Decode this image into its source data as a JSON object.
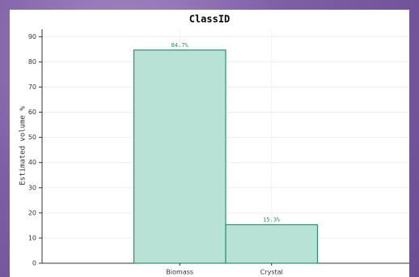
{
  "chart_data": {
    "type": "bar",
    "title": "ClassID",
    "y_label": "Estimated volume %",
    "categories": [
      "Biomass",
      "Crystal"
    ],
    "values": [
      84.7,
      15.3
    ],
    "value_labels": [
      "84.7%",
      "15.3%"
    ],
    "color": "#b9e2d6",
    "edge_color": "#2b8f6e",
    "ylim": [
      0,
      93
    ],
    "yticks": [
      0,
      10,
      20,
      30,
      40,
      50,
      60,
      70,
      80,
      90
    ],
    "grid": true
  }
}
